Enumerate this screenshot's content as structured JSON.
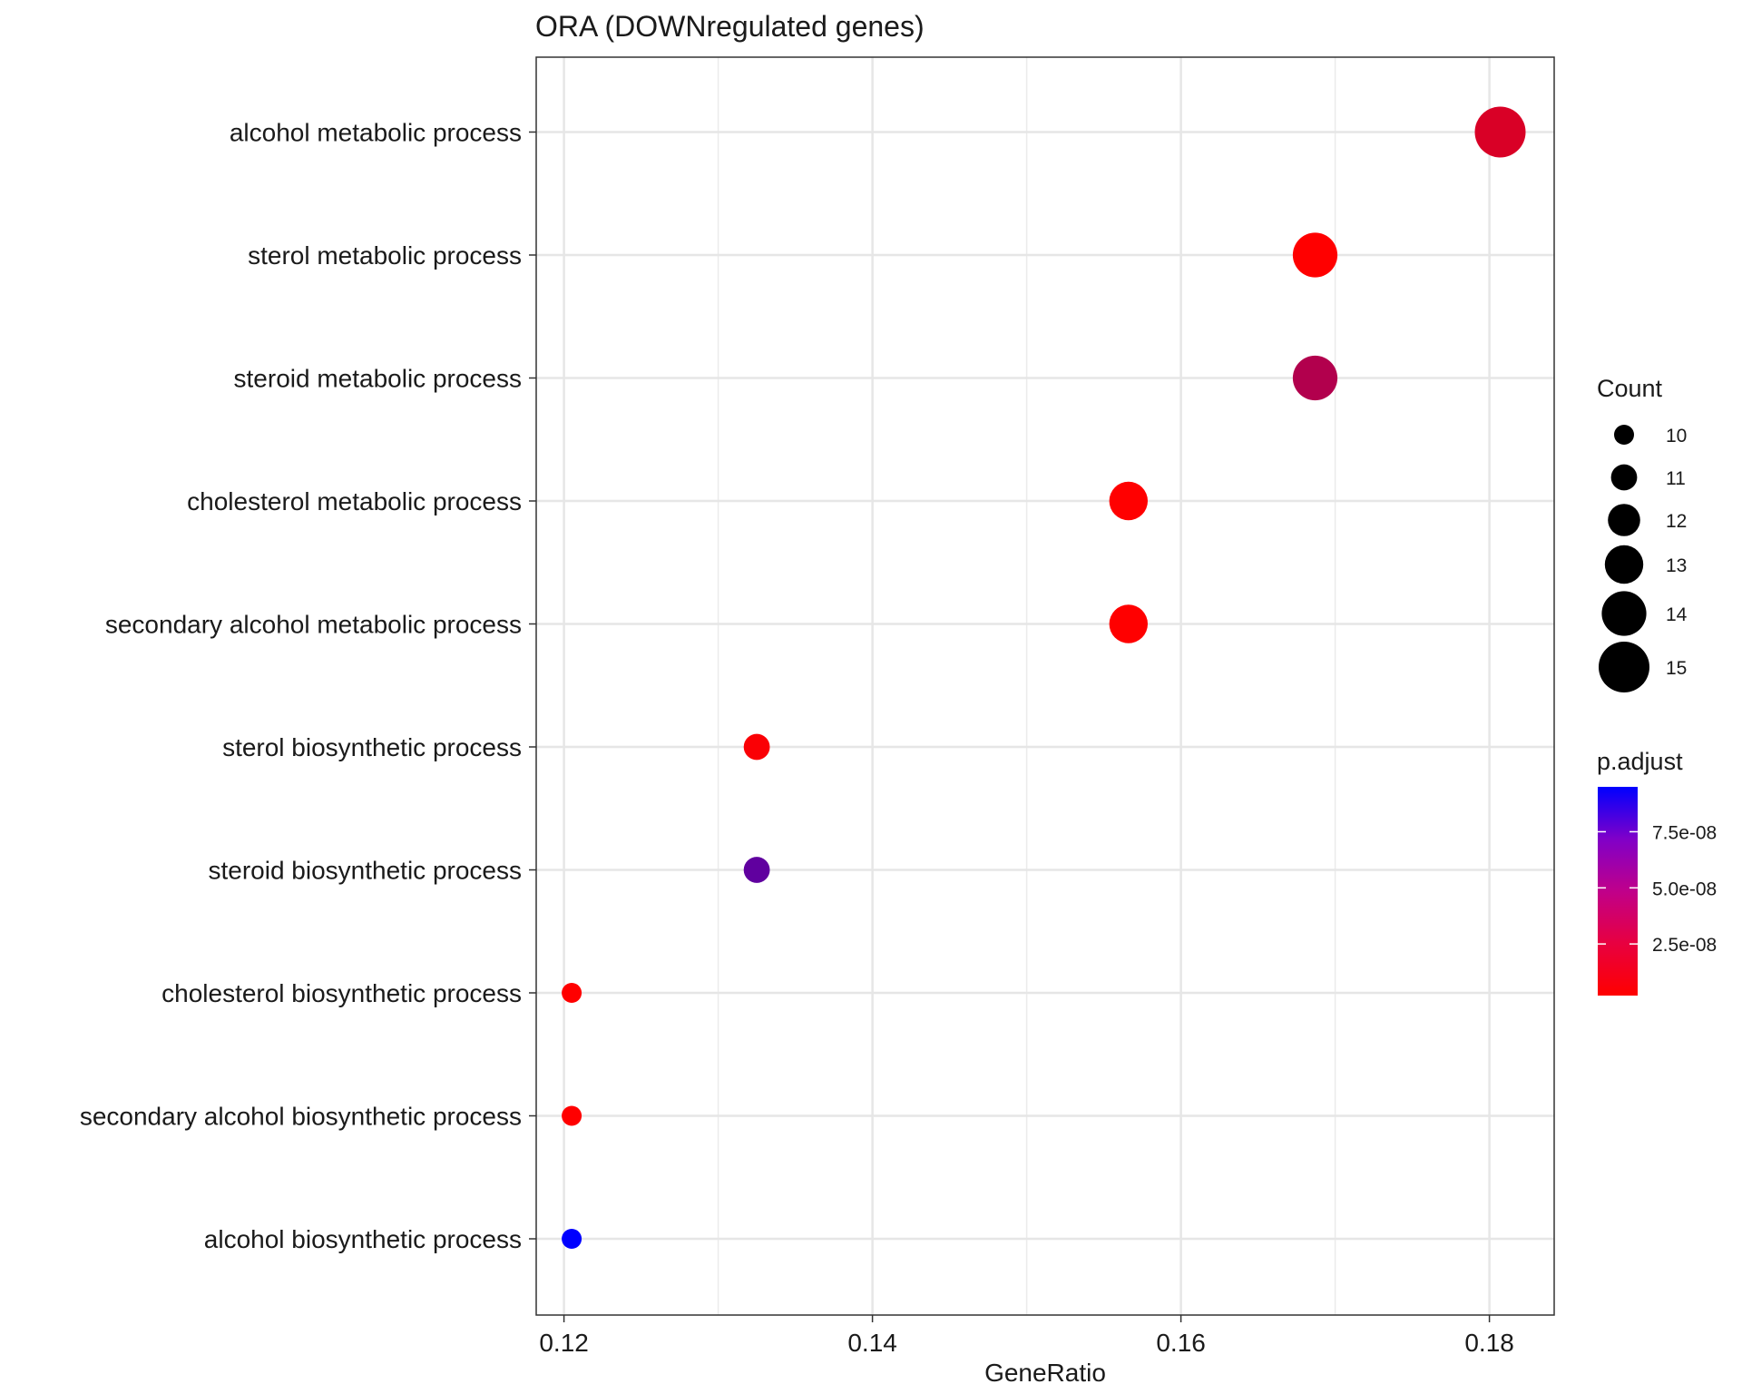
{
  "chart_data": {
    "type": "scatter",
    "title": "ORA (DOWNregulated genes)",
    "xlabel": "GeneRatio",
    "ylabel": "",
    "xlim": [
      0.1182,
      0.1842
    ],
    "x_ticks": [
      0.12,
      0.14,
      0.16,
      0.18
    ],
    "x_tick_labels": [
      "0.12",
      "0.14",
      "0.16",
      "0.18"
    ],
    "grid": true,
    "categories": [
      "alcohol metabolic process",
      "sterol metabolic process",
      "steroid metabolic process",
      "cholesterol metabolic process",
      "secondary alcohol metabolic process",
      "sterol biosynthetic process",
      "steroid biosynthetic process",
      "cholesterol biosynthetic process",
      "secondary alcohol biosynthetic process",
      "alcohol biosynthetic process"
    ],
    "points": [
      {
        "term": "alcohol metabolic process",
        "gene_ratio": 0.1807,
        "count": 15,
        "p_adjust": 1.6e-08
      },
      {
        "term": "sterol metabolic process",
        "gene_ratio": 0.1687,
        "count": 14,
        "p_adjust": 2e-09
      },
      {
        "term": "steroid metabolic process",
        "gene_ratio": 0.1687,
        "count": 14,
        "p_adjust": 3e-08
      },
      {
        "term": "cholesterol metabolic process",
        "gene_ratio": 0.1566,
        "count": 13,
        "p_adjust": 2e-09
      },
      {
        "term": "secondary alcohol metabolic process",
        "gene_ratio": 0.1566,
        "count": 13,
        "p_adjust": 2e-09
      },
      {
        "term": "sterol biosynthetic process",
        "gene_ratio": 0.1325,
        "count": 11,
        "p_adjust": 4e-09
      },
      {
        "term": "steroid biosynthetic process",
        "gene_ratio": 0.1325,
        "count": 11,
        "p_adjust": 6e-08
      },
      {
        "term": "cholesterol biosynthetic process",
        "gene_ratio": 0.1205,
        "count": 10,
        "p_adjust": 2e-09
      },
      {
        "term": "secondary alcohol biosynthetic process",
        "gene_ratio": 0.1205,
        "count": 10,
        "p_adjust": 2e-09
      },
      {
        "term": "alcohol biosynthetic process",
        "gene_ratio": 0.1205,
        "count": 10,
        "p_adjust": 9.5e-08
      }
    ],
    "size_legend": {
      "title": "Count",
      "entries": [
        {
          "label": "10",
          "value": 10
        },
        {
          "label": "11",
          "value": 11
        },
        {
          "label": "12",
          "value": 12
        },
        {
          "label": "13",
          "value": 13
        },
        {
          "label": "14",
          "value": 14
        },
        {
          "label": "15",
          "value": 15
        }
      ]
    },
    "color_legend": {
      "title": "p.adjust",
      "range": [
        2e-09,
        9.5e-08
      ],
      "low_color": "#ff0000",
      "high_color": "#0000ff",
      "ticks": [
        {
          "label": "2.5e-08",
          "value": 2.5e-08
        },
        {
          "label": "5.0e-08",
          "value": 5e-08
        },
        {
          "label": "7.5e-08",
          "value": 7.5e-08
        }
      ]
    }
  }
}
